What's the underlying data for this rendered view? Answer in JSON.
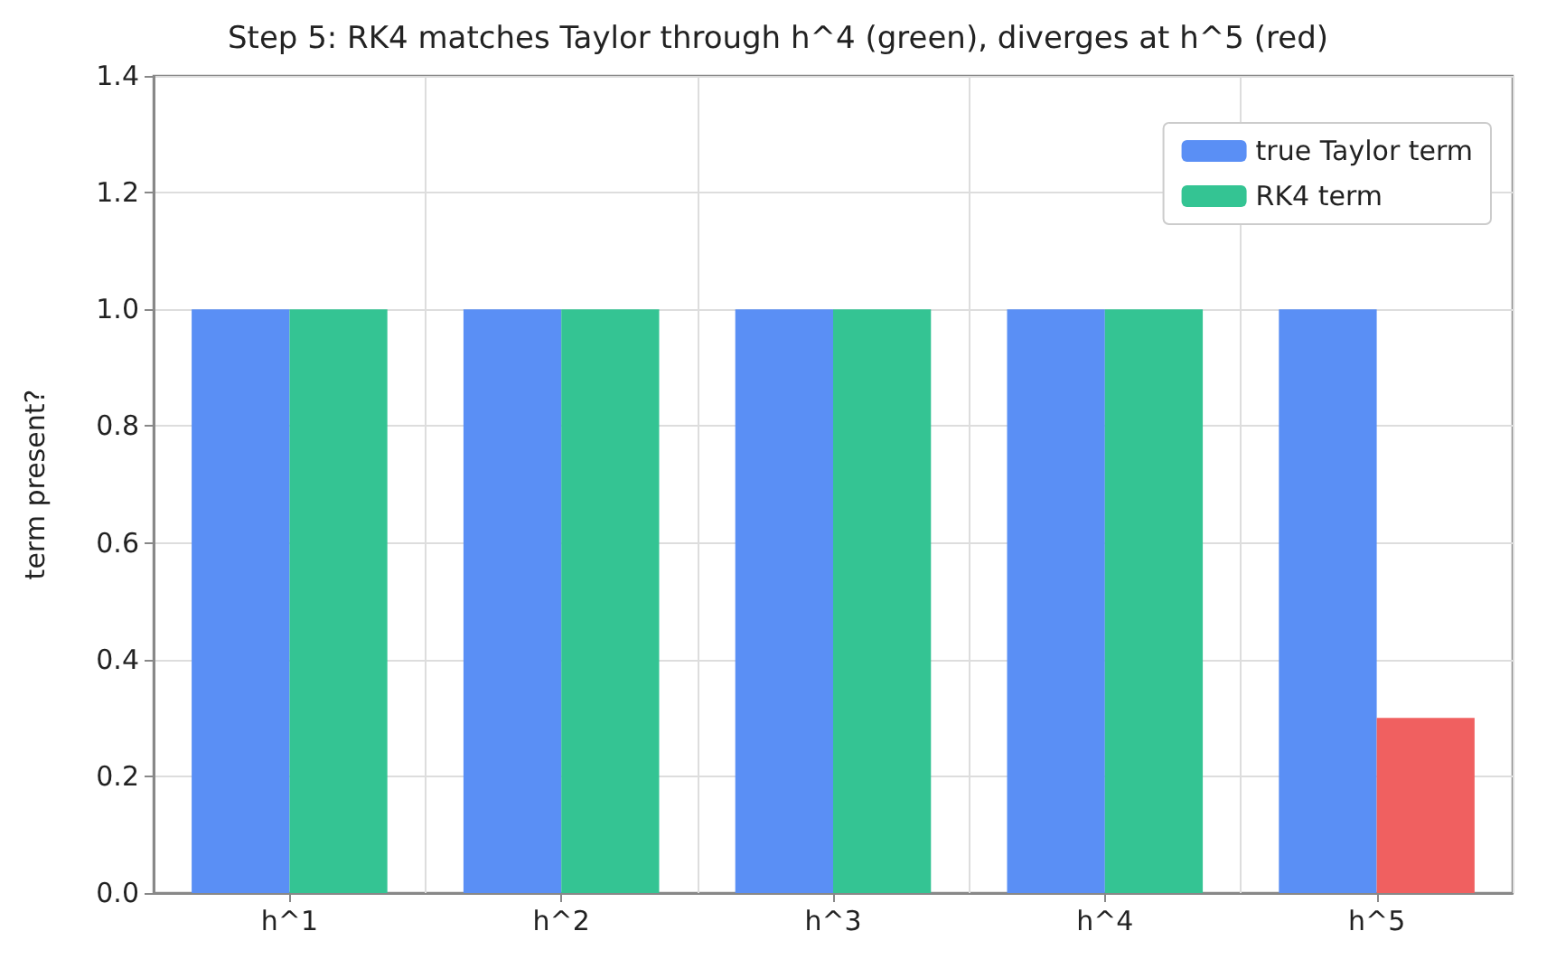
{
  "chart_data": {
    "type": "bar",
    "title": "Step 5: RK4 matches Taylor through h^4 (green), diverges at h^5 (red)",
    "ylabel": "term present?",
    "categories": [
      "h^1",
      "h^2",
      "h^3",
      "h^4",
      "h^5"
    ],
    "series": [
      {
        "name": "true Taylor term",
        "color": "#5a8ff5",
        "values": [
          1,
          1,
          1,
          1,
          1
        ]
      },
      {
        "name": "RK4 term",
        "color": "#34c493",
        "colors": [
          "#34c493",
          "#34c493",
          "#34c493",
          "#34c493",
          "#f06060"
        ],
        "values": [
          1,
          1,
          1,
          1,
          0.3
        ]
      }
    ],
    "ylim": [
      0,
      1.4
    ],
    "yticks": [
      {
        "value": 0,
        "label": "0.0"
      },
      0.2,
      0.4,
      0.6,
      0.8,
      {
        "value": 1,
        "label": "1.0"
      },
      1.2,
      1.4
    ],
    "grid": true,
    "legend": "top right"
  }
}
